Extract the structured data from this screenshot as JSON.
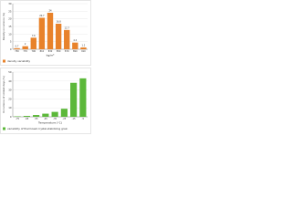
{
  "chart_data": [
    {
      "type": "bar",
      "title": "density variability",
      "y_label": "Density occurrence (%)",
      "x_label": "kg/m³",
      "categories": [
        "750",
        "770",
        "790",
        "810",
        "830",
        "850",
        "870",
        "890",
        "910"
      ],
      "values": [
        0.7,
        2.0,
        7.6,
        20.7,
        24.0,
        16.8,
        12.7,
        4.4,
        1.2
      ],
      "color": "#e8822a",
      "ylim": [
        0,
        30
      ],
      "yticks": [
        0,
        5,
        10,
        15,
        20,
        25,
        30
      ],
      "grid": true,
      "value_labels_shown": true
    },
    {
      "type": "bar",
      "title": "variability of thermoset crystal-stabilizing grain",
      "y_label": "Occurrence of coldest days (%)",
      "x_label": "Temperature (°C)",
      "categories": [
        "-75",
        "-65",
        "-55",
        "-45",
        "-35",
        "-25",
        "-15",
        "-5"
      ],
      "values": [
        0.5,
        1.0,
        2.0,
        3.5,
        5.5,
        9.0,
        38.0,
        43.0
      ],
      "color": "#5cb83a",
      "ylim": [
        0,
        50
      ],
      "yticks": [
        0,
        10,
        20,
        30,
        40,
        50
      ],
      "grid": true,
      "value_labels_shown": false
    }
  ]
}
